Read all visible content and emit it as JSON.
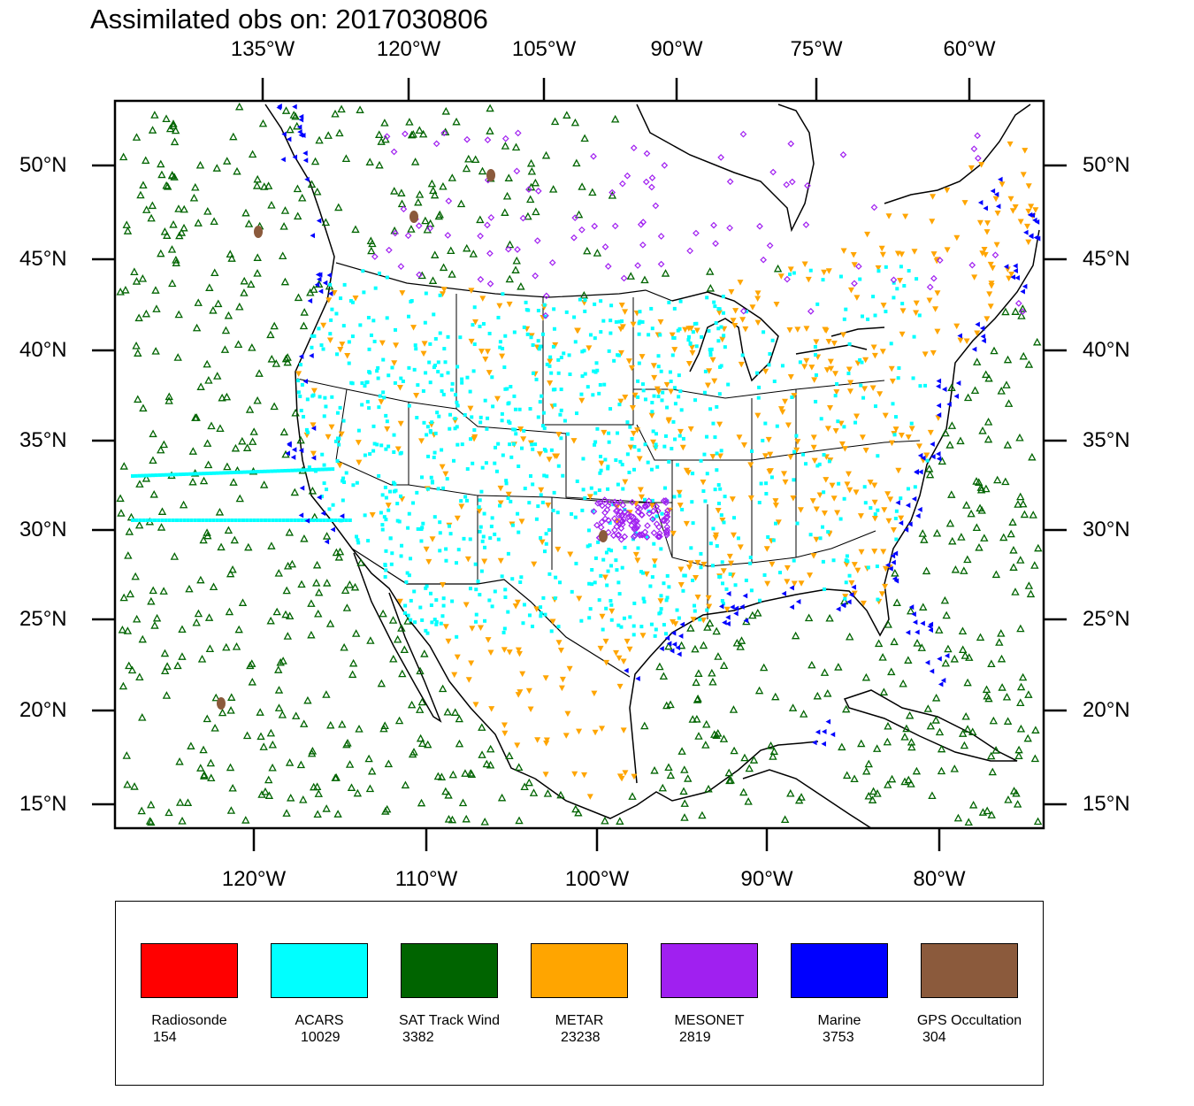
{
  "title": "Assimilated obs on: 2017030806",
  "top_axis_labels": [
    "135°W",
    "120°W",
    "105°W",
    "90°W",
    "75°W",
    "60°W"
  ],
  "bottom_axis_labels": [
    "120°W",
    "110°W",
    "100°W",
    "90°W",
    "80°W"
  ],
  "left_axis_labels": [
    "50°N",
    "45°N",
    "40°N",
    "35°N",
    "30°N",
    "25°N",
    "20°N",
    "15°N"
  ],
  "right_axis_labels": [
    "50°N",
    "45°N",
    "40°N",
    "35°N",
    "30°N",
    "25°N",
    "20°N",
    "15°N"
  ],
  "legend": [
    {
      "name": "Radiosonde",
      "count": "154",
      "color": "#ff0000",
      "marker": "none"
    },
    {
      "name": "ACARS",
      "count": "10029",
      "color": "#00ffff",
      "marker": "square"
    },
    {
      "name": "SAT Track Wind",
      "count": "3382",
      "color": "#006400",
      "marker": "triangle-up-open"
    },
    {
      "name": "METAR",
      "count": "23238",
      "color": "#ffa500",
      "marker": "triangle-down"
    },
    {
      "name": "MESONET",
      "count": "2819",
      "color": "#a020f0",
      "marker": "diamond-open"
    },
    {
      "name": "Marine",
      "count": "3753",
      "color": "#0000ff",
      "marker": "triangle-left"
    },
    {
      "name": "GPS Occultation",
      "count": "304",
      "color": "#8b5a3c",
      "marker": "blob"
    }
  ]
}
